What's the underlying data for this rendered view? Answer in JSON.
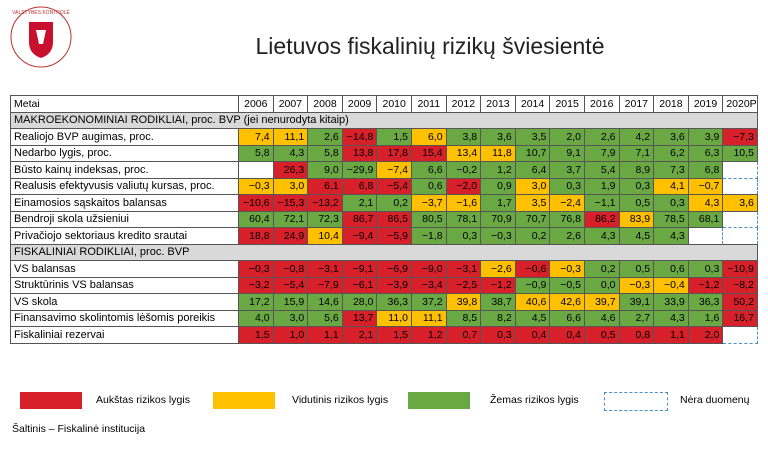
{
  "logo": {
    "text": "VALSTYBĖS KONTROLĖ"
  },
  "header": {
    "title": "Lietuvos fiskalinių rizikų šviesientė"
  },
  "table": {
    "columns": [
      "Metai",
      "2006",
      "2007",
      "2008",
      "2009",
      "2010",
      "2011",
      "2012",
      "2013",
      "2014",
      "2015",
      "2016",
      "2017",
      "2018",
      "2019",
      "2020P"
    ],
    "sections": [
      {
        "title": "MAKROEKONOMINIAI RODIKLIAI, proc. BVP (jei nenurodyta kitaip)",
        "rows": [
          {
            "label": "Realiojo BVP augimas, proc.",
            "cells": [
              {
                "v": "7,4",
                "r": "medium"
              },
              {
                "v": "11,1",
                "r": "medium"
              },
              {
                "v": "2,6",
                "r": "low"
              },
              {
                "v": "−14,8",
                "r": "high"
              },
              {
                "v": "1,5",
                "r": "low"
              },
              {
                "v": "6,0",
                "r": "medium"
              },
              {
                "v": "3,8",
                "r": "low"
              },
              {
                "v": "3,6",
                "r": "low"
              },
              {
                "v": "3,5",
                "r": "low"
              },
              {
                "v": "2,0",
                "r": "low"
              },
              {
                "v": "2,6",
                "r": "low"
              },
              {
                "v": "4,2",
                "r": "low"
              },
              {
                "v": "3,6",
                "r": "low"
              },
              {
                "v": "3,9",
                "r": "low"
              },
              {
                "v": "−7,3",
                "r": "high"
              }
            ]
          },
          {
            "label": "Nedarbo lygis, proc.",
            "cells": [
              {
                "v": "5,8",
                "r": "low"
              },
              {
                "v": "4,3",
                "r": "low"
              },
              {
                "v": "5,8",
                "r": "low"
              },
              {
                "v": "13,8",
                "r": "high"
              },
              {
                "v": "17,8",
                "r": "high"
              },
              {
                "v": "15,4",
                "r": "high"
              },
              {
                "v": "13,4",
                "r": "medium"
              },
              {
                "v": "11,8",
                "r": "medium"
              },
              {
                "v": "10,7",
                "r": "low"
              },
              {
                "v": "9,1",
                "r": "low"
              },
              {
                "v": "7,9",
                "r": "low"
              },
              {
                "v": "7,1",
                "r": "low"
              },
              {
                "v": "6,2",
                "r": "low"
              },
              {
                "v": "6,3",
                "r": "low"
              },
              {
                "v": "10,5",
                "r": "low"
              }
            ]
          },
          {
            "label": "Būsto kainų indeksas, proc.",
            "cells": [
              {
                "r": "blank"
              },
              {
                "v": "26,3",
                "r": "high"
              },
              {
                "v": "9,0",
                "r": "low"
              },
              {
                "v": "−29,9",
                "r": "low"
              },
              {
                "v": "−7,4",
                "r": "medium"
              },
              {
                "v": "6,6",
                "r": "low"
              },
              {
                "v": "−0,2",
                "r": "low"
              },
              {
                "v": "1,2",
                "r": "low"
              },
              {
                "v": "6,4",
                "r": "low"
              },
              {
                "v": "3,7",
                "r": "low"
              },
              {
                "v": "5,4",
                "r": "low"
              },
              {
                "v": "8,9",
                "r": "low"
              },
              {
                "v": "7,3",
                "r": "low"
              },
              {
                "v": "6,8",
                "r": "low"
              },
              {
                "r": "none"
              }
            ]
          },
          {
            "label": "Realusis efektyvusis valiutų kursas, proc.",
            "cells": [
              {
                "v": "−0,3",
                "r": "medium"
              },
              {
                "v": "3,0",
                "r": "medium"
              },
              {
                "v": "6,1",
                "r": "high"
              },
              {
                "v": "6,8",
                "r": "high"
              },
              {
                "v": "−5,4",
                "r": "high"
              },
              {
                "v": "0,6",
                "r": "low"
              },
              {
                "v": "−2,0",
                "r": "high"
              },
              {
                "v": "0,9",
                "r": "low"
              },
              {
                "v": "3,0",
                "r": "medium"
              },
              {
                "v": "0,3",
                "r": "low"
              },
              {
                "v": "1,9",
                "r": "low"
              },
              {
                "v": "0,3",
                "r": "low"
              },
              {
                "v": "4,1",
                "r": "medium"
              },
              {
                "v": "−0,7",
                "r": "medium"
              },
              {
                "r": "none"
              }
            ]
          },
          {
            "label": "Einamosios sąskaitos balansas",
            "cells": [
              {
                "v": "−10,6",
                "r": "high"
              },
              {
                "v": "−15,3",
                "r": "high"
              },
              {
                "v": "−13,2",
                "r": "high"
              },
              {
                "v": "2,1",
                "r": "low"
              },
              {
                "v": "0,2",
                "r": "low"
              },
              {
                "v": "−3,7",
                "r": "medium"
              },
              {
                "v": "−1,6",
                "r": "medium"
              },
              {
                "v": "1,7",
                "r": "low"
              },
              {
                "v": "3,5",
                "r": "medium"
              },
              {
                "v": "−2,4",
                "r": "medium"
              },
              {
                "v": "−1,1",
                "r": "low"
              },
              {
                "v": "0,5",
                "r": "low"
              },
              {
                "v": "0,3",
                "r": "low"
              },
              {
                "v": "4,3",
                "r": "medium"
              },
              {
                "v": "3,6",
                "r": "medium"
              }
            ]
          },
          {
            "label": "Bendroji skola užsieniui",
            "cells": [
              {
                "v": "60,4",
                "r": "low"
              },
              {
                "v": "72,1",
                "r": "low"
              },
              {
                "v": "72,3",
                "r": "low"
              },
              {
                "v": "86,7",
                "r": "high"
              },
              {
                "v": "86,5",
                "r": "high"
              },
              {
                "v": "80,5",
                "r": "low"
              },
              {
                "v": "78,1",
                "r": "low"
              },
              {
                "v": "70,9",
                "r": "low"
              },
              {
                "v": "70,7",
                "r": "low"
              },
              {
                "v": "76,8",
                "r": "low"
              },
              {
                "v": "86,2",
                "r": "high"
              },
              {
                "v": "83,9",
                "r": "medium"
              },
              {
                "v": "78,5",
                "r": "low"
              },
              {
                "v": "68,1",
                "r": "low"
              },
              {
                "r": "none"
              }
            ]
          },
          {
            "label": "Privačiojo sektoriaus kredito srautai",
            "cells": [
              {
                "v": "18,8",
                "r": "high"
              },
              {
                "v": "24,9",
                "r": "high"
              },
              {
                "v": "10,4",
                "r": "medium"
              },
              {
                "v": "−9,4",
                "r": "high"
              },
              {
                "v": "−5,9",
                "r": "high"
              },
              {
                "v": "−1,8",
                "r": "low"
              },
              {
                "v": "0,3",
                "r": "low"
              },
              {
                "v": "−0,3",
                "r": "low"
              },
              {
                "v": "0,2",
                "r": "low"
              },
              {
                "v": "2,6",
                "r": "low"
              },
              {
                "v": "4,3",
                "r": "low"
              },
              {
                "v": "4,5",
                "r": "low"
              },
              {
                "v": "4,3",
                "r": "low"
              },
              {
                "r": "none"
              },
              {
                "r": "none"
              }
            ]
          }
        ]
      },
      {
        "title": "FISKALINIAI RODIKLIAI, proc. BVP",
        "rows": [
          {
            "label": "VS balansas",
            "cells": [
              {
                "v": "−0,3",
                "r": "high"
              },
              {
                "v": "−0,8",
                "r": "high"
              },
              {
                "v": "−3,1",
                "r": "high"
              },
              {
                "v": "−9,1",
                "r": "high"
              },
              {
                "v": "−6,9",
                "r": "high"
              },
              {
                "v": "−9,0",
                "r": "high"
              },
              {
                "v": "−3,1",
                "r": "high"
              },
              {
                "v": "−2,6",
                "r": "medium"
              },
              {
                "v": "−0,6",
                "r": "high"
              },
              {
                "v": "−0,3",
                "r": "medium"
              },
              {
                "v": "0,2",
                "r": "low"
              },
              {
                "v": "0,5",
                "r": "low"
              },
              {
                "v": "0,6",
                "r": "low"
              },
              {
                "v": "0,3",
                "r": "low"
              },
              {
                "v": "−10,9",
                "r": "high"
              }
            ]
          },
          {
            "label": "Struktūrinis VS balansas",
            "cells": [
              {
                "v": "−3,2",
                "r": "high"
              },
              {
                "v": "−5,4",
                "r": "high"
              },
              {
                "v": "−7,9",
                "r": "high"
              },
              {
                "v": "−6,1",
                "r": "high"
              },
              {
                "v": "−3,9",
                "r": "high"
              },
              {
                "v": "−3,4",
                "r": "high"
              },
              {
                "v": "−2,5",
                "r": "high"
              },
              {
                "v": "−1,2",
                "r": "high"
              },
              {
                "v": "−0,9",
                "r": "low"
              },
              {
                "v": "−0,5",
                "r": "low"
              },
              {
                "v": "0,0",
                "r": "low"
              },
              {
                "v": "−0,3",
                "r": "medium"
              },
              {
                "v": "−0,4",
                "r": "medium"
              },
              {
                "v": "−1,2",
                "r": "high"
              },
              {
                "v": "−8,2",
                "r": "high"
              }
            ]
          },
          {
            "label": "VS skola",
            "cells": [
              {
                "v": "17,2",
                "r": "low"
              },
              {
                "v": "15,9",
                "r": "low"
              },
              {
                "v": "14,6",
                "r": "low"
              },
              {
                "v": "28,0",
                "r": "low"
              },
              {
                "v": "36,3",
                "r": "low"
              },
              {
                "v": "37,2",
                "r": "low"
              },
              {
                "v": "39,8",
                "r": "medium"
              },
              {
                "v": "38,7",
                "r": "low"
              },
              {
                "v": "40,6",
                "r": "medium"
              },
              {
                "v": "42,6",
                "r": "medium"
              },
              {
                "v": "39,7",
                "r": "medium"
              },
              {
                "v": "39,1",
                "r": "low"
              },
              {
                "v": "33,9",
                "r": "low"
              },
              {
                "v": "36,3",
                "r": "low"
              },
              {
                "v": "50,2",
                "r": "high"
              }
            ]
          },
          {
            "label": "Finansavimo skolintomis lėšomis poreikis",
            "cells": [
              {
                "v": "4,0",
                "r": "low"
              },
              {
                "v": "3,0",
                "r": "low"
              },
              {
                "v": "5,6",
                "r": "low"
              },
              {
                "v": "13,7",
                "r": "high"
              },
              {
                "v": "11,0",
                "r": "medium"
              },
              {
                "v": "11,1",
                "r": "medium"
              },
              {
                "v": "8,5",
                "r": "low"
              },
              {
                "v": "8,2",
                "r": "low"
              },
              {
                "v": "4,5",
                "r": "low"
              },
              {
                "v": "6,6",
                "r": "low"
              },
              {
                "v": "4,6",
                "r": "low"
              },
              {
                "v": "2,7",
                "r": "low"
              },
              {
                "v": "4,3",
                "r": "low"
              },
              {
                "v": "1,6",
                "r": "low"
              },
              {
                "v": "16,7",
                "r": "high"
              }
            ]
          },
          {
            "label": "Fiskaliniai rezervai",
            "cells": [
              {
                "v": "1,5",
                "r": "high"
              },
              {
                "v": "1,0",
                "r": "high"
              },
              {
                "v": "1,1",
                "r": "high"
              },
              {
                "v": "2,1",
                "r": "high"
              },
              {
                "v": "1,5",
                "r": "high"
              },
              {
                "v": "1,2",
                "r": "high"
              },
              {
                "v": "0,7",
                "r": "high"
              },
              {
                "v": "0,3",
                "r": "high"
              },
              {
                "v": "0,4",
                "r": "high"
              },
              {
                "v": "0,4",
                "r": "high"
              },
              {
                "v": "0,5",
                "r": "high"
              },
              {
                "v": "0,8",
                "r": "high"
              },
              {
                "v": "1,1",
                "r": "high"
              },
              {
                "v": "2,0",
                "r": "high"
              },
              {
                "r": "none"
              }
            ]
          }
        ]
      }
    ]
  },
  "legend": [
    {
      "key": "high",
      "label": "Aukštas rizikos lygis",
      "color": "#d7202a"
    },
    {
      "key": "medium",
      "label": "Vidutinis rizikos lygis",
      "color": "#ffc000"
    },
    {
      "key": "low",
      "label": "Žemas rizikos lygis",
      "color": "#6aa843"
    },
    {
      "key": "none",
      "label": "Nėra duomenų",
      "color": "#4a90c8"
    }
  ],
  "source": "Šaltinis – Fiskalinė institucija"
}
